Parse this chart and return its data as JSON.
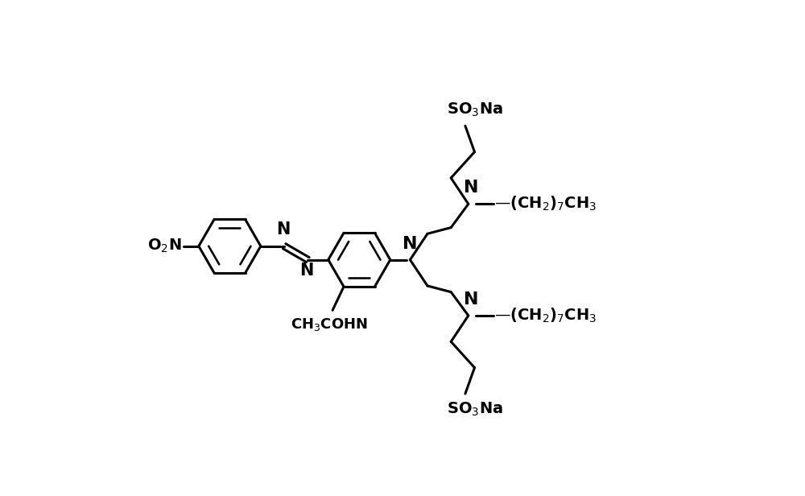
{
  "bg_color": "#ffffff",
  "line_color": "#000000",
  "line_width": 2.2,
  "font_size": 14,
  "fig_width": 10.0,
  "fig_height": 6.16,
  "dpi": 100,
  "xlim": [
    0,
    10
  ],
  "ylim": [
    0,
    6.16
  ]
}
